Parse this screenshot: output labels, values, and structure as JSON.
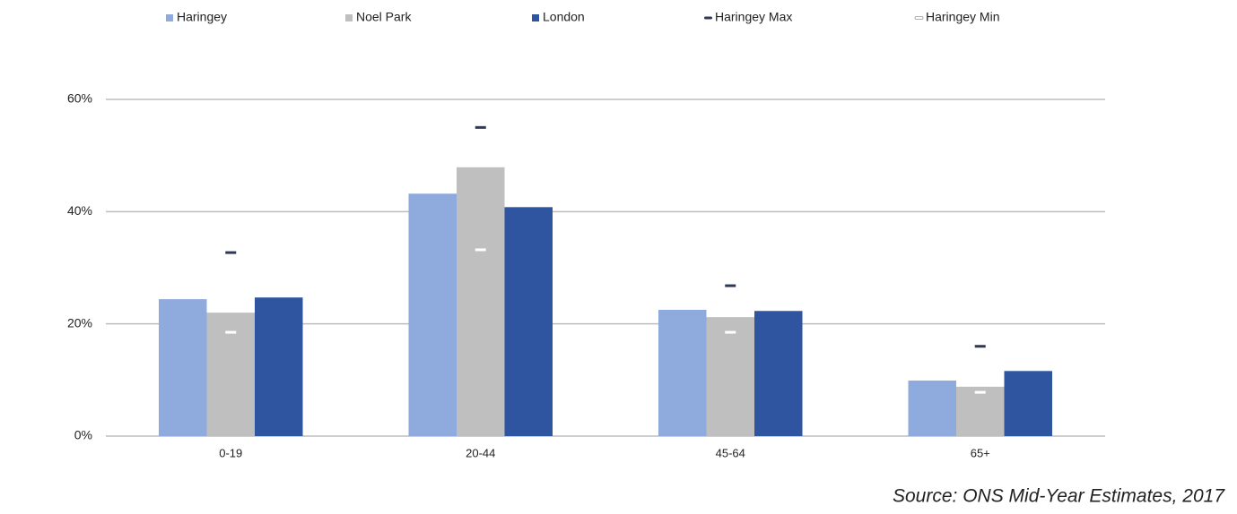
{
  "chart_data": {
    "type": "bar",
    "categories": [
      "0-19",
      "20-44",
      "45-64",
      "65+"
    ],
    "series": [
      {
        "name": "Haringey",
        "color": "#8faadc",
        "kind": "bar",
        "values": [
          24.4,
          43.2,
          22.5,
          9.9
        ]
      },
      {
        "name": "Noel Park",
        "color": "#bfbfbf",
        "kind": "bar",
        "values": [
          22.0,
          47.9,
          21.2,
          8.8
        ]
      },
      {
        "name": "London",
        "color": "#2f55a0",
        "kind": "bar",
        "values": [
          24.7,
          40.8,
          22.3,
          11.6
        ]
      },
      {
        "name": "Haringey Max",
        "color": "#2e3a55",
        "kind": "dash",
        "values": [
          32.7,
          55.0,
          26.8,
          16.0
        ]
      },
      {
        "name": "Haringey Min",
        "color": "#ffffff",
        "kind": "dash",
        "values": [
          18.5,
          33.2,
          18.5,
          7.8
        ]
      }
    ],
    "ylim": [
      0,
      60
    ],
    "yticks": [
      {
        "value": 0,
        "label": "0%"
      },
      {
        "value": 20,
        "label": "20%"
      },
      {
        "value": 40,
        "label": "40%"
      },
      {
        "value": 60,
        "label": "60%"
      }
    ],
    "grid": true,
    "legend": "top",
    "source": "Source: ONS Mid-Year Estimates, 2017"
  }
}
